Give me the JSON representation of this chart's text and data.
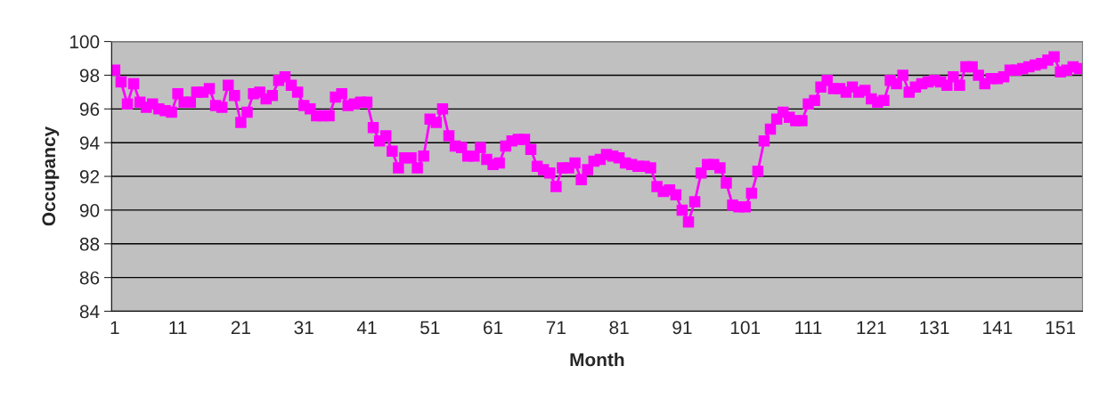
{
  "chart_data": {
    "type": "line",
    "xlabel": "Month",
    "ylabel": "Occupancy",
    "categories": [
      "1",
      null,
      null,
      null,
      null,
      null,
      null,
      null,
      null,
      null,
      "11",
      null,
      null,
      null,
      null,
      null,
      null,
      null,
      null,
      null,
      "21",
      null,
      null,
      null,
      null,
      null,
      null,
      null,
      null,
      null,
      "31",
      null,
      null,
      null,
      null,
      null,
      null,
      null,
      null,
      null,
      "41",
      null,
      null,
      null,
      null,
      null,
      null,
      null,
      null,
      null,
      "51",
      null,
      null,
      null,
      null,
      null,
      null,
      null,
      null,
      null,
      "61",
      null,
      null,
      null,
      null,
      null,
      null,
      null,
      null,
      null,
      "71",
      null,
      null,
      null,
      null,
      null,
      null,
      null,
      null,
      null,
      "81",
      null,
      null,
      null,
      null,
      null,
      null,
      null,
      null,
      null,
      "91",
      null,
      null,
      null,
      null,
      null,
      null,
      null,
      null,
      null,
      "101",
      null,
      null,
      null,
      null,
      null,
      null,
      null,
      null,
      null,
      "111",
      null,
      null,
      null,
      null,
      null,
      null,
      null,
      null,
      null,
      "121",
      null,
      null,
      null,
      null,
      null,
      null,
      null,
      null,
      null,
      "131",
      null,
      null,
      null,
      null,
      null,
      null,
      null,
      null,
      null,
      "141",
      null,
      null,
      null,
      null,
      null,
      null,
      null,
      null,
      null,
      "151",
      null,
      null,
      null
    ],
    "series": [
      {
        "color": "#ff00ff",
        "values": [
          98.3,
          97.6,
          96.3,
          97.5,
          96.4,
          96.1,
          96.3,
          96.0,
          95.9,
          95.8,
          96.9,
          96.4,
          96.4,
          97.0,
          97.0,
          97.2,
          96.2,
          96.1,
          97.4,
          96.8,
          95.2,
          95.8,
          96.9,
          97.0,
          96.6,
          96.8,
          97.7,
          97.9,
          97.4,
          97.0,
          96.2,
          96.0,
          95.6,
          95.6,
          95.6,
          96.7,
          96.9,
          96.2,
          96.3,
          96.4,
          96.4,
          94.9,
          94.1,
          94.4,
          93.5,
          92.5,
          93.1,
          93.1,
          92.5,
          93.2,
          95.4,
          95.2,
          96.0,
          94.4,
          93.8,
          93.7,
          93.2,
          93.2,
          93.7,
          93.0,
          92.7,
          92.8,
          93.8,
          94.1,
          94.2,
          94.2,
          93.6,
          92.6,
          92.4,
          92.2,
          91.4,
          92.5,
          92.5,
          92.8,
          91.8,
          92.4,
          92.9,
          93.0,
          93.3,
          93.2,
          93.1,
          92.8,
          92.7,
          92.6,
          92.6,
          92.5,
          91.4,
          91.1,
          91.2,
          90.9,
          90.0,
          89.3,
          90.5,
          92.2,
          92.7,
          92.7,
          92.5,
          91.6,
          90.3,
          90.2,
          90.2,
          91.0,
          92.3,
          94.1,
          94.8,
          95.4,
          95.8,
          95.5,
          95.3,
          95.3,
          96.3,
          96.5,
          97.3,
          97.7,
          97.2,
          97.2,
          97.0,
          97.3,
          97.0,
          97.1,
          96.6,
          96.4,
          96.5,
          97.7,
          97.5,
          98.0,
          97.0,
          97.3,
          97.5,
          97.6,
          97.7,
          97.6,
          97.4,
          97.9,
          97.4,
          98.5,
          98.5,
          98.0,
          97.5,
          97.8,
          97.8,
          97.9,
          98.3,
          98.3,
          98.4,
          98.5,
          98.6,
          98.7,
          98.9,
          99.1,
          98.2,
          98.3,
          98.5,
          98.4
        ]
      }
    ],
    "ylim": [
      84,
      100
    ],
    "yticks": [
      84,
      86,
      88,
      90,
      92,
      94,
      96,
      98,
      100
    ],
    "grid": "y",
    "marker": "square",
    "line_style": "solid"
  }
}
